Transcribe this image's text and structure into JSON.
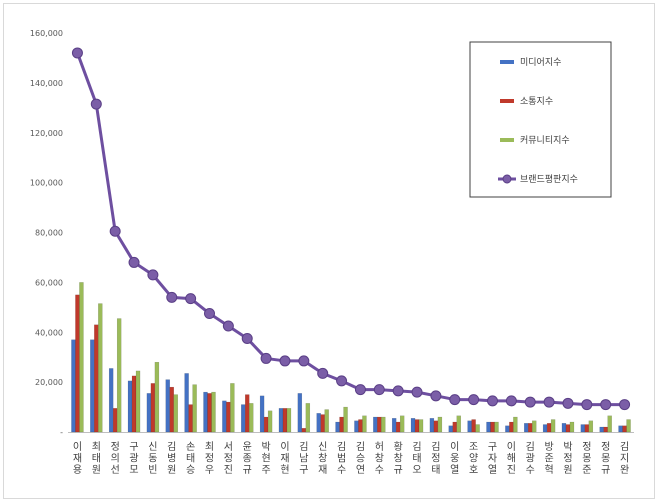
{
  "chart_data": {
    "type": "bar",
    "categories": [
      "이재용",
      "최태원",
      "정의선",
      "구광모",
      "신동빈",
      "김병원",
      "손태승",
      "최정우",
      "서정진",
      "윤종규",
      "박현주",
      "이재현",
      "김남구",
      "신창재",
      "김범수",
      "김승연",
      "허창수",
      "황창규",
      "김태오",
      "김정태",
      "이웅열",
      "조양호",
      "구자열",
      "이해진",
      "김광수",
      "방준혁",
      "박정원",
      "정몽준",
      "정몽규",
      "김지완"
    ],
    "series": [
      {
        "name": "미디어지수",
        "kind": "bar",
        "color": "#4472c4",
        "values": [
          37000,
          37000,
          25500,
          20500,
          15500,
          21000,
          23500,
          16000,
          12500,
          11000,
          14500,
          9500,
          15500,
          7500,
          4000,
          4500,
          6000,
          5500,
          5500,
          5500,
          2500,
          4500,
          4000,
          2500,
          3500,
          3000,
          3500,
          3000,
          2000,
          2500
        ]
      },
      {
        "name": "소통지수",
        "kind": "bar",
        "color": "#c0392b",
        "values": [
          55000,
          43000,
          9500,
          22500,
          19500,
          18000,
          11000,
          15500,
          12000,
          15000,
          6000,
          9500,
          1500,
          7000,
          6000,
          5000,
          6000,
          4000,
          5000,
          4500,
          4000,
          5000,
          4000,
          4000,
          3500,
          3500,
          3000,
          3000,
          2000,
          2500
        ]
      },
      {
        "name": "커뮤니티지수",
        "kind": "bar",
        "color": "#9bbb59",
        "values": [
          60000,
          51500,
          45500,
          24500,
          28000,
          15000,
          19000,
          16000,
          19500,
          11500,
          8500,
          9500,
          11500,
          9000,
          10000,
          6500,
          6000,
          6500,
          5000,
          6000,
          6500,
          3000,
          4000,
          6000,
          4500,
          5000,
          4000,
          4500,
          6500,
          5000
        ]
      },
      {
        "name": "브랜드평판지수",
        "kind": "line",
        "color": "#6e4fa0",
        "values": [
          152000,
          131500,
          80500,
          68000,
          63000,
          54000,
          53500,
          47500,
          42500,
          37500,
          29500,
          28500,
          28500,
          23500,
          20500,
          17000,
          17000,
          16500,
          16000,
          14500,
          13000,
          13000,
          12500,
          12500,
          12000,
          12000,
          11500,
          11000,
          11000,
          11000
        ]
      }
    ],
    "ylim": [
      0,
      160000
    ],
    "yticks": [
      "-",
      "20,000",
      "40,000",
      "60,000",
      "80,000",
      "100,000",
      "120,000",
      "140,000",
      "160,000"
    ],
    "legend_position": "top-right",
    "grid": false
  }
}
